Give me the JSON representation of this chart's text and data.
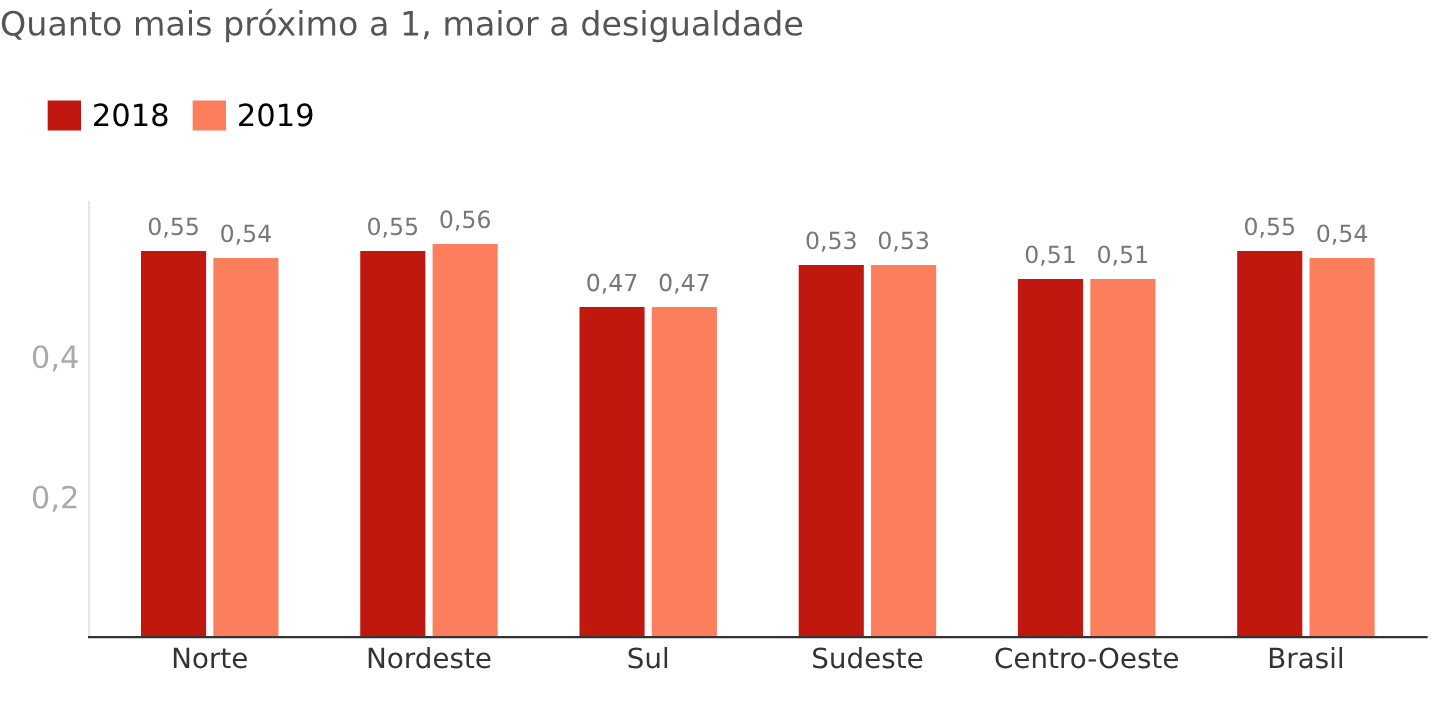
{
  "chart_data": {
    "type": "bar",
    "title": "Quanto mais próximo a 1, maior a desigualdade",
    "categories": [
      "Norte",
      "Nordeste",
      "Sul",
      "Sudeste",
      "Centro-Oeste",
      "Brasil"
    ],
    "series": [
      {
        "name": "2018",
        "color": "#c0170f",
        "values": [
          0.55,
          0.55,
          0.47,
          0.53,
          0.51,
          0.55
        ],
        "value_labels": [
          "0,55",
          "0,55",
          "0,47",
          "0,53",
          "0,51",
          "0,55"
        ]
      },
      {
        "name": "2019",
        "color": "#fb7f5c",
        "values": [
          0.54,
          0.56,
          0.47,
          0.53,
          0.51,
          0.54
        ],
        "value_labels": [
          "0,54",
          "0,56",
          "0,47",
          "0,53",
          "0,51",
          "0,54"
        ]
      }
    ],
    "ylim": [
      0,
      0.62
    ],
    "yticks": [
      {
        "value": 0.2,
        "label": "0,2"
      },
      {
        "value": 0.4,
        "label": "0,4"
      }
    ],
    "grid": false,
    "legend": "top left"
  }
}
